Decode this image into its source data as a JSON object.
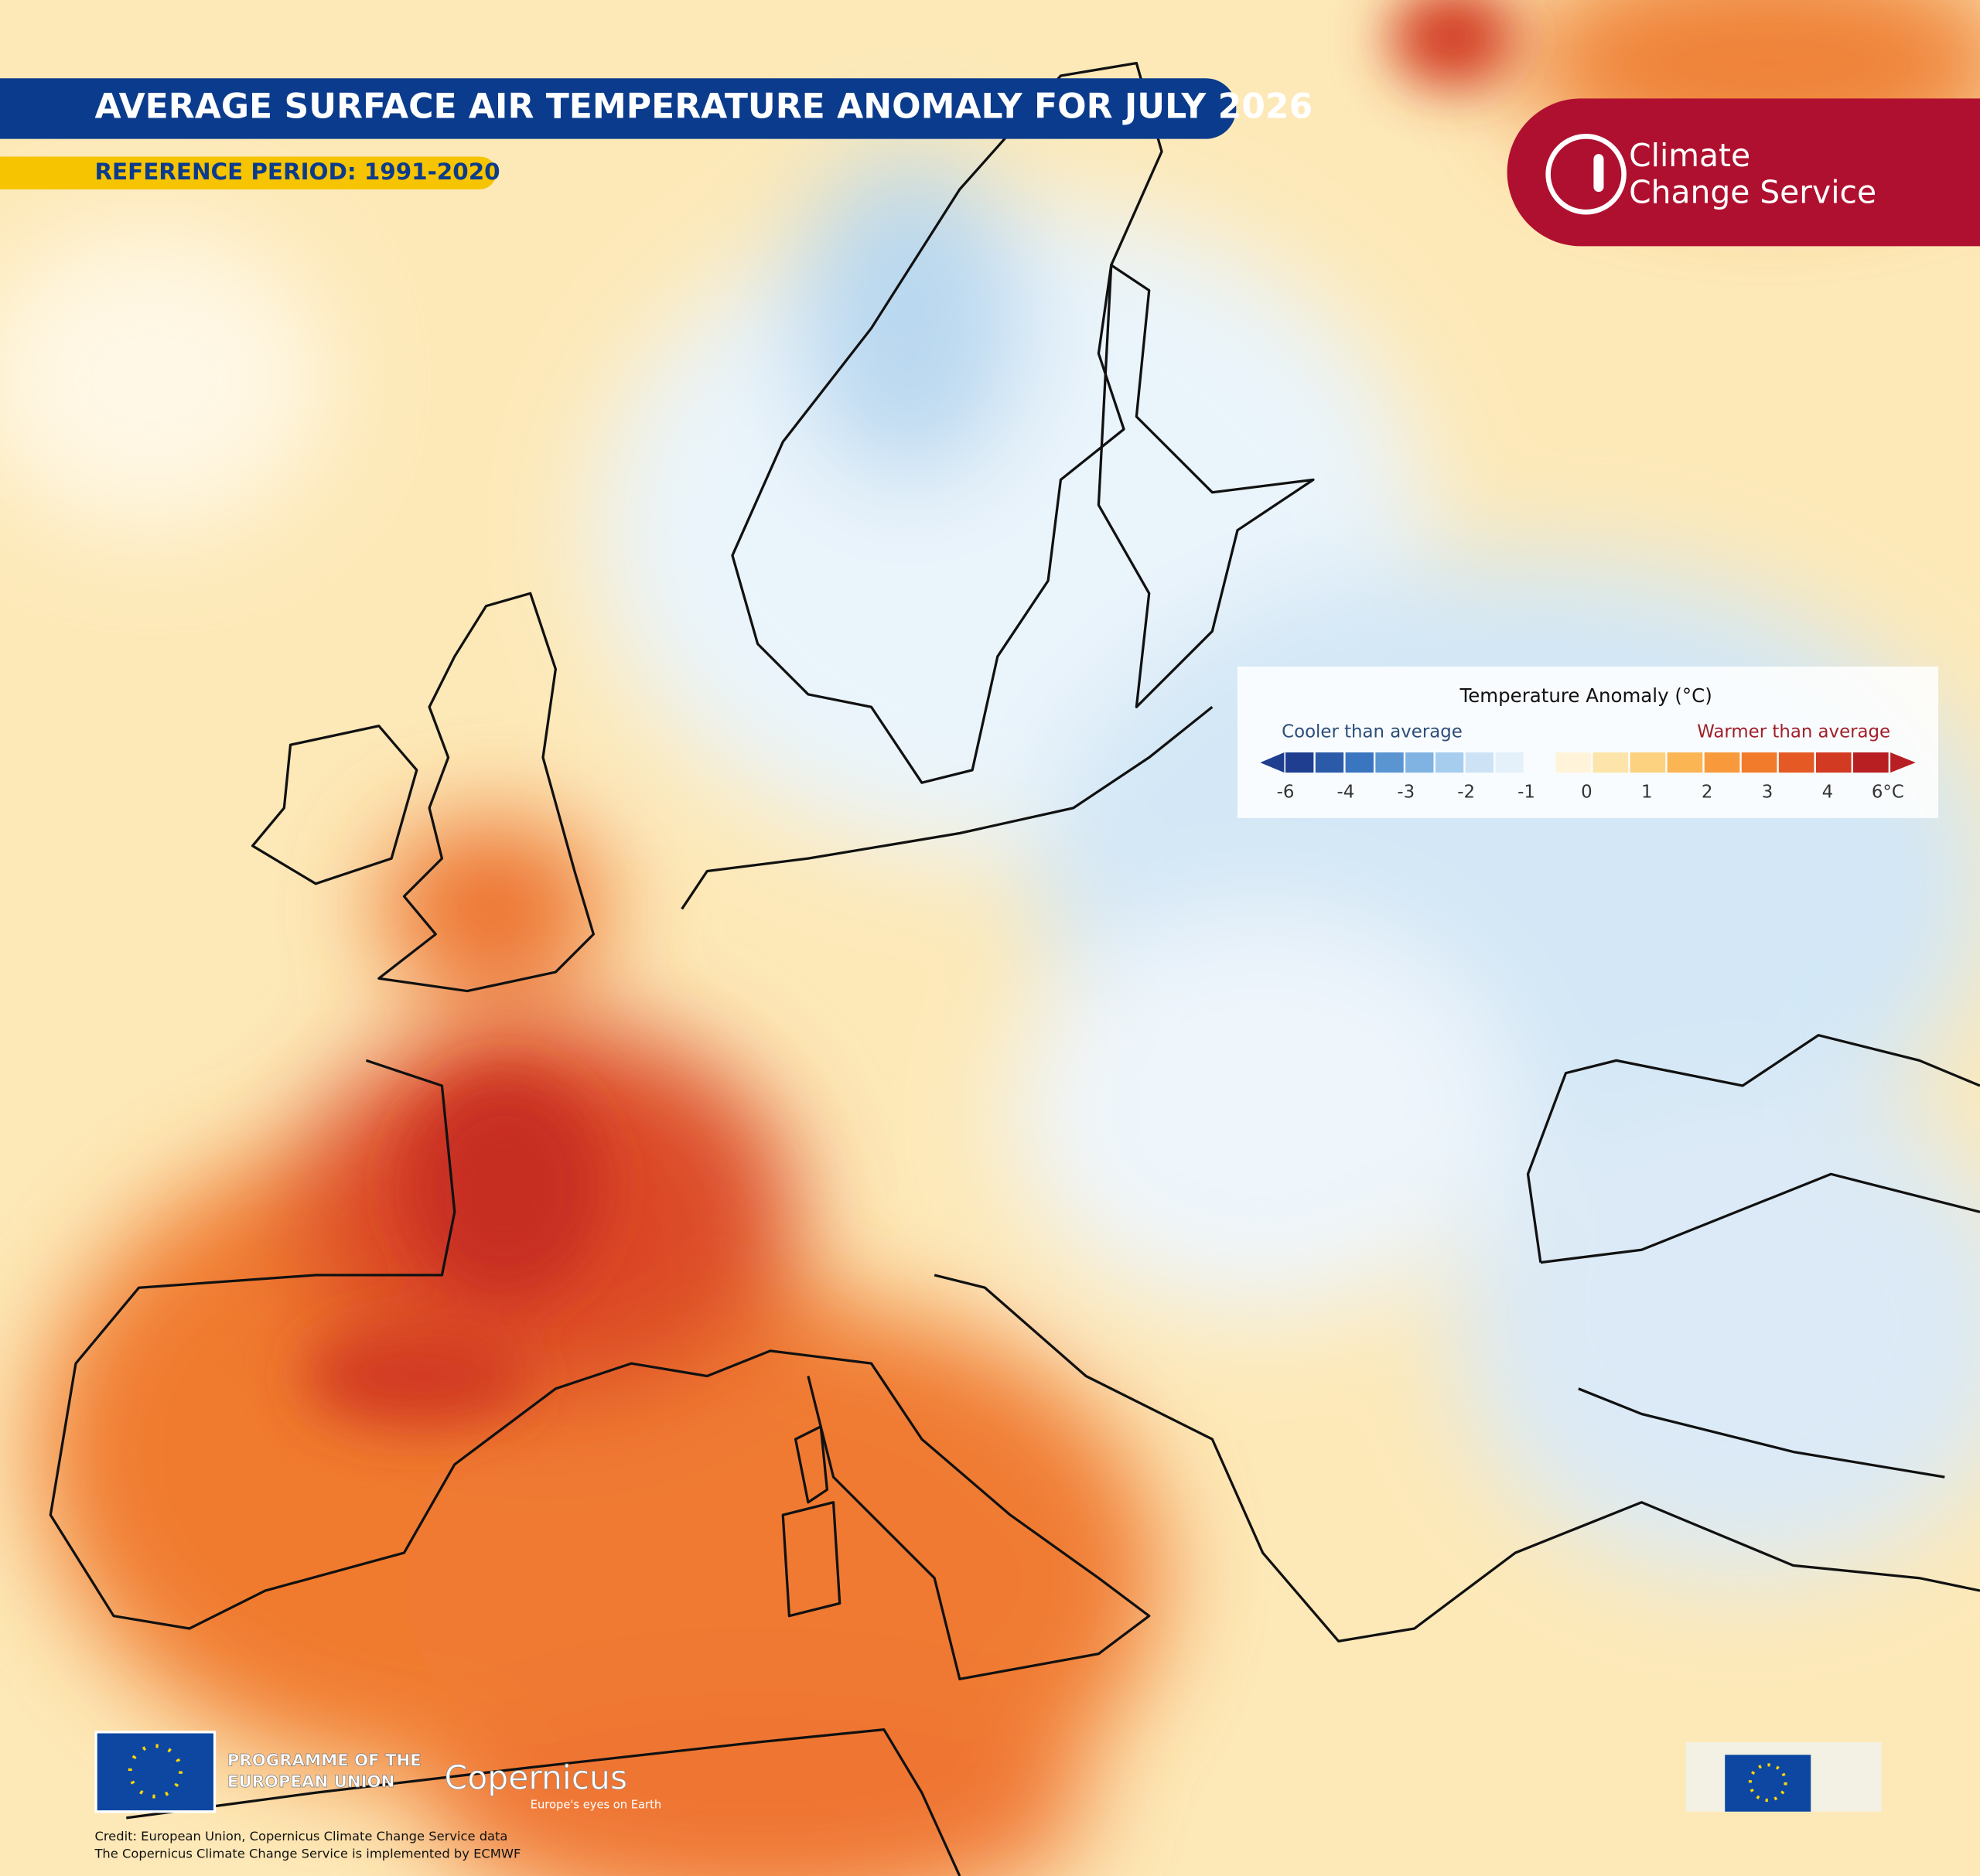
{
  "header": {
    "title": "AVERAGE SURFACE AIR TEMPERATURE ANOMALY FOR JULY 2026",
    "subtitle": "REFERENCE PERIOD: 1991-2020"
  },
  "brand": {
    "line1": "Climate",
    "line2": "Change Service"
  },
  "legend": {
    "title": "Temperature Anomaly (°C)",
    "cool_label": "Cooler than average",
    "warm_label": "Warmer than average",
    "ticks": [
      -6,
      -4,
      -3,
      -2,
      -1,
      0,
      1,
      2,
      3,
      4,
      {
        "value": 6,
        "label": "6°C"
      }
    ],
    "cool_colors": [
      "#1f3e8f",
      "#2b5aa8",
      "#3a75c0",
      "#5a95d2",
      "#80b3e2",
      "#a7cdee",
      "#cde3f5",
      "#e4f0fa"
    ],
    "warm_colors": [
      "#fff4d9",
      "#fde4aa",
      "#fcd17f",
      "#fbb553",
      "#f89a3b",
      "#f27b2b",
      "#e55a24",
      "#d23a22",
      "#b81f22"
    ]
  },
  "footer": {
    "programme_line1": "PROGRAMME OF THE",
    "programme_line2": "EUROPEAN UNION",
    "copernicus": "Copernicus",
    "tagline": "Europe's eyes on Earth",
    "credit_line1": "Credit: European Union, Copernicus Climate Change Service data",
    "credit_line2": "The Copernicus Climate Change Service is implemented by ECMWF"
  }
}
